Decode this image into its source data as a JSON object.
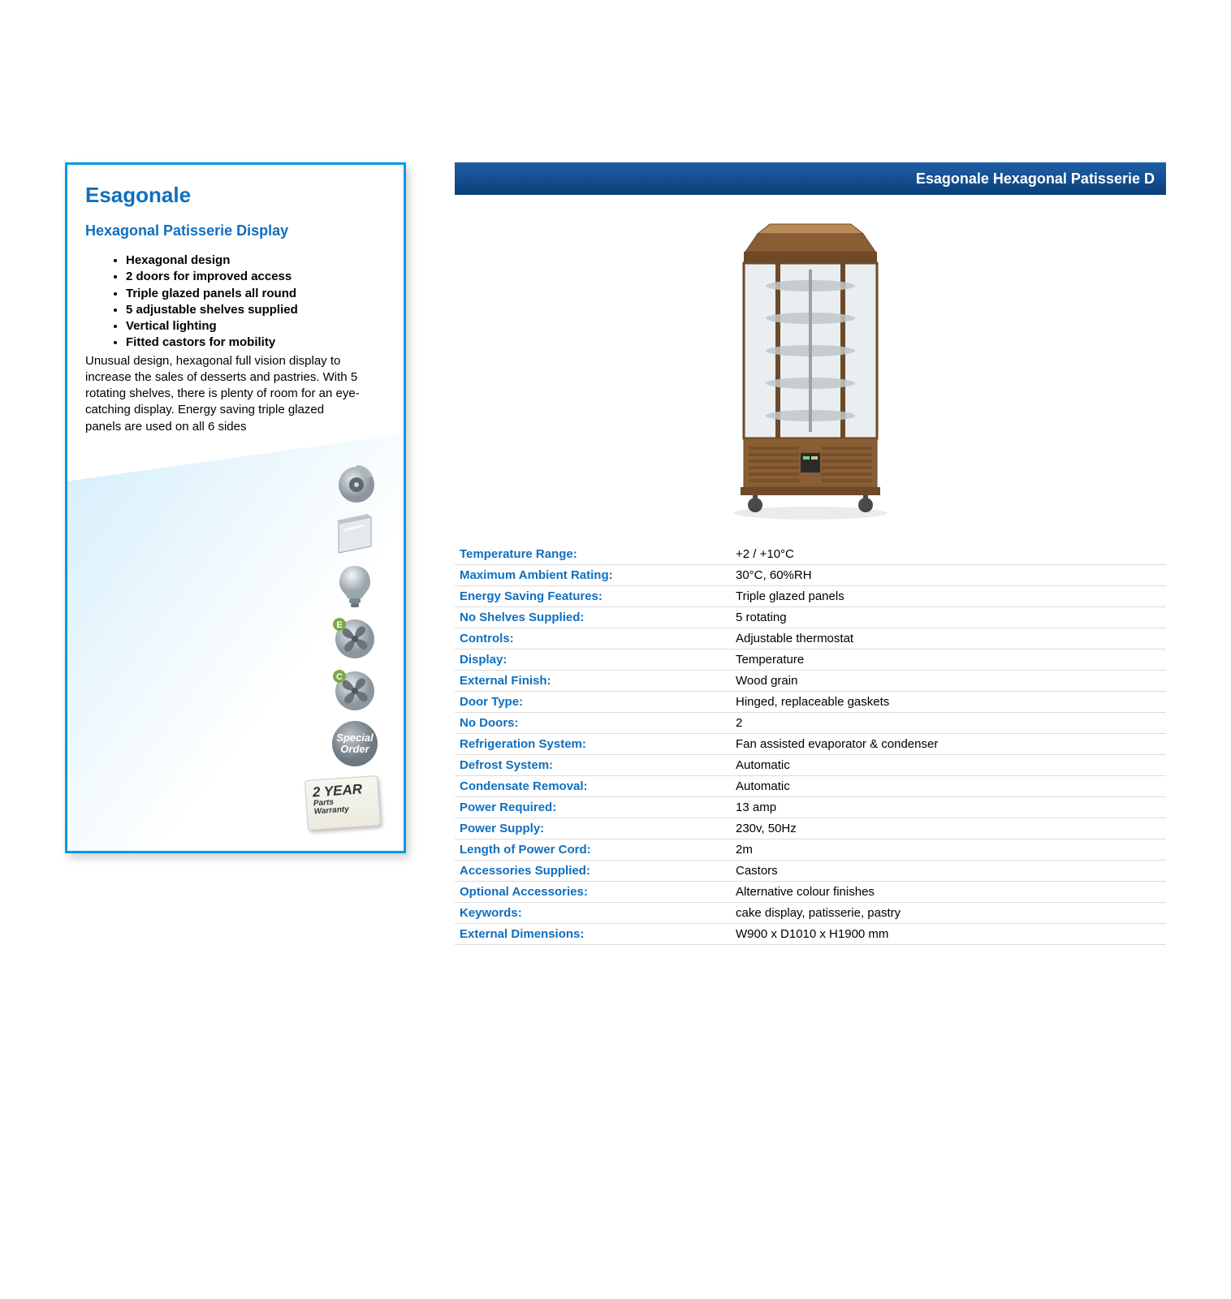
{
  "colors": {
    "brandBlue": "#0f6fbf",
    "panelBorder": "#0099e6",
    "titleBarGradTop": "#1f5fa8",
    "titleBarGradBottom": "#0a3f78",
    "rowBorder": "#dcdcdc",
    "iconGrey": "#8c969c",
    "iconLight": "#d6dde2"
  },
  "leftPanel": {
    "title": "Esagonale",
    "subtitle": "Hexagonal Patisserie Display",
    "bullets": [
      "Hexagonal design",
      "2 doors for improved access",
      "Triple glazed panels all round",
      "5 adjustable shelves supplied",
      "Vertical lighting",
      "Fitted castors for mobility"
    ],
    "description": "Unusual design, hexagonal full vision display to increase the sales of desserts and pastries. With 5 rotating shelves, there is plenty of room for an eye-catching display. Energy saving triple glazed panels are used on all 6 sides",
    "icons": [
      {
        "name": "castor-icon"
      },
      {
        "name": "glazed-panel-icon"
      },
      {
        "name": "lighting-icon"
      },
      {
        "name": "evaporator-fan-icon"
      },
      {
        "name": "condenser-fan-icon"
      },
      {
        "name": "special-order-icon",
        "label": "Special Order"
      }
    ],
    "warranty": {
      "line1": "2 YEAR",
      "line2": "Parts",
      "line3": "Warranty"
    }
  },
  "titleBar": "Esagonale   Hexagonal Patisserie D",
  "specs": [
    {
      "label": "Temperature Range:",
      "value": "+2 / +10°C"
    },
    {
      "label": "Maximum Ambient Rating:",
      "value": "30°C, 60%RH"
    },
    {
      "label": "Energy Saving Features:",
      "value": "Triple glazed panels"
    },
    {
      "label": "No Shelves Supplied:",
      "value": "5 rotating"
    },
    {
      "label": "Controls:",
      "value": "Adjustable thermostat"
    },
    {
      "label": "Display:",
      "value": "Temperature"
    },
    {
      "label": "External Finish:",
      "value": "Wood grain"
    },
    {
      "label": "Door Type:",
      "value": "Hinged, replaceable gaskets"
    },
    {
      "label": "No Doors:",
      "value": "2"
    },
    {
      "label": "Refrigeration System:",
      "value": "Fan assisted evaporator & condenser"
    },
    {
      "label": "Defrost System:",
      "value": "Automatic"
    },
    {
      "label": "Condensate Removal:",
      "value": "Automatic"
    },
    {
      "label": "Power Required:",
      "value": "13 amp"
    },
    {
      "label": "Power Supply:",
      "value": "230v, 50Hz"
    },
    {
      "label": "Length of Power Cord:",
      "value": "2m"
    },
    {
      "label": "Accessories Supplied:",
      "value": "Castors"
    },
    {
      "label": "Optional Accessories:",
      "value": "Alternative colour finishes"
    },
    {
      "label": "Keywords:",
      "value": "cake display, patisserie, pastry"
    },
    {
      "label": "External Dimensions:",
      "value": "W900 x D1010 x H1900 mm"
    }
  ],
  "productVisual": {
    "woodDark": "#6e4a28",
    "woodMid": "#8a5e34",
    "woodLight": "#b98a55",
    "glassFill": "#e9eef0",
    "glassEdge": "#c8d2d6",
    "shelfColor": "#bfc7c9",
    "widthPx": 220,
    "heightPx": 370
  }
}
